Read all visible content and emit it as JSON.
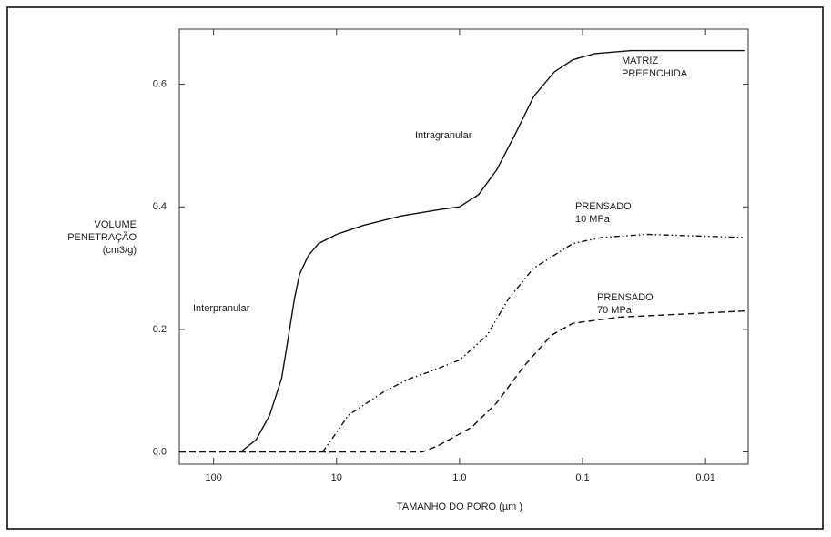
{
  "chart_data": {
    "type": "line",
    "xlabel": "TAMANHO DO PORO (µm )",
    "ylabel": [
      "VOLUME",
      "PENETRAÇÃO",
      "(cm3/g)"
    ],
    "xscale": "log",
    "xlim": [
      190,
      0.0045
    ],
    "xticks": [
      {
        "value": 100,
        "label": "100"
      },
      {
        "value": 10,
        "label": "10"
      },
      {
        "value": 1,
        "label": "1.0"
      },
      {
        "value": 0.1,
        "label": "0.1"
      },
      {
        "value": 0.01,
        "label": "0.01"
      }
    ],
    "ylim": [
      -0.02,
      0.69
    ],
    "yticks": [
      {
        "value": 0,
        "label": "0.0"
      },
      0.2,
      0.4,
      0.6
    ],
    "annotations": [
      "Intragranular",
      "Interpranular"
    ],
    "series": [
      {
        "name": "MATRIZ PREENCHIDA",
        "color": "#111111",
        "dash": "solid",
        "x": [
          60,
          45,
          35,
          28,
          25,
          22,
          20,
          17,
          14,
          10,
          6,
          3,
          1.5,
          1.0,
          0.7,
          0.5,
          0.35,
          0.25,
          0.17,
          0.12,
          0.08,
          0.04,
          0.0048
        ],
        "values": [
          0,
          0.02,
          0.06,
          0.12,
          0.18,
          0.25,
          0.29,
          0.32,
          0.34,
          0.355,
          0.37,
          0.385,
          0.395,
          0.4,
          0.42,
          0.46,
          0.52,
          0.58,
          0.62,
          0.64,
          0.65,
          0.655,
          0.655
        ]
      },
      {
        "name": "PRENSADO 10 MPa",
        "color": "#111111",
        "dash": "dashdot",
        "x": [
          13,
          11,
          8,
          4,
          2.5,
          1.8,
          1.0,
          0.6,
          0.4,
          0.25,
          0.12,
          0.07,
          0.03,
          0.0048
        ],
        "values": [
          0,
          0.02,
          0.06,
          0.1,
          0.12,
          0.13,
          0.15,
          0.19,
          0.25,
          0.3,
          0.34,
          0.35,
          0.355,
          0.35
        ]
      },
      {
        "name": "PRENSADO 70 MPa",
        "color": "#111111",
        "dash": "dashed",
        "x": [
          190,
          2,
          1.5,
          0.8,
          0.5,
          0.3,
          0.18,
          0.12,
          0.05,
          0.0048
        ],
        "values": [
          0,
          0,
          0.01,
          0.04,
          0.08,
          0.14,
          0.19,
          0.21,
          0.22,
          0.23
        ]
      }
    ]
  }
}
